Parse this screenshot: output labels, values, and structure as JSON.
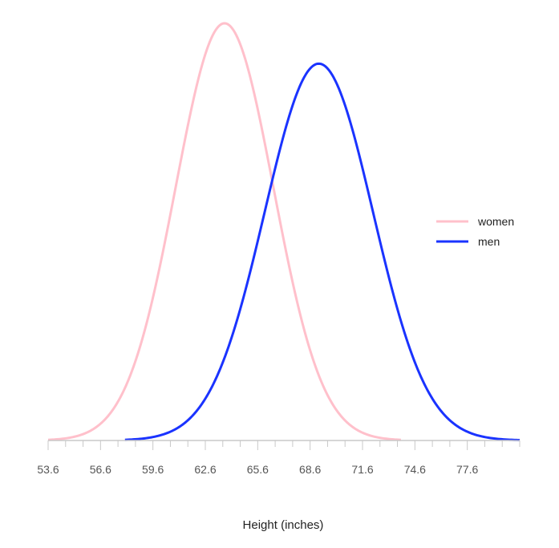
{
  "chart_data": {
    "type": "line",
    "title": "",
    "xlabel": "Height (inches)",
    "ylabel": "",
    "xlim": [
      53.6,
      80.6
    ],
    "x_ticks": [
      "53.6",
      "56.6",
      "59.6",
      "62.6",
      "65.6",
      "68.6",
      "71.6",
      "74.6",
      "77.6"
    ],
    "grid": false,
    "legend_position": "right",
    "series": [
      {
        "name": "women",
        "color": "#ffc0cb",
        "mean": 63.7,
        "sd": 2.8,
        "x_range": [
          53.6,
          73.8
        ]
      },
      {
        "name": "men",
        "color": "#1a33ff",
        "mean": 69.1,
        "sd": 3.1,
        "x_range": [
          58.0,
          80.6
        ]
      }
    ]
  }
}
